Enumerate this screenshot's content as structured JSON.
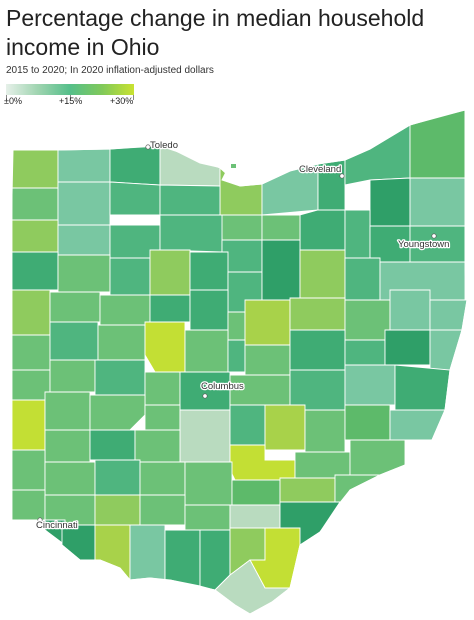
{
  "header": {
    "title": "Percentage change in median household income in Ohio",
    "subtitle": "2015 to 2020; In 2020 inflation-adjusted dollars"
  },
  "legend": {
    "labels": [
      "±0%",
      "+15%",
      "+30%"
    ],
    "colors": [
      "#e6f0e9",
      "#55bf8a",
      "#c9e231"
    ]
  },
  "cities": [
    {
      "name": "Toledo"
    },
    {
      "name": "Cleveland"
    },
    {
      "name": "Youngstown"
    },
    {
      "name": "Columbus"
    },
    {
      "name": "Cincinnati"
    }
  ],
  "palette": {
    "a": "#6cc177",
    "b": "#4fb57f",
    "c": "#3fac74",
    "d": "#8fcb5e",
    "e": "#c3df34",
    "f": "#79c7a2",
    "g": "#b9dbbf",
    "h": "#a8d24a",
    "i": "#5dba6a",
    "j": "#2f9f68"
  }
}
